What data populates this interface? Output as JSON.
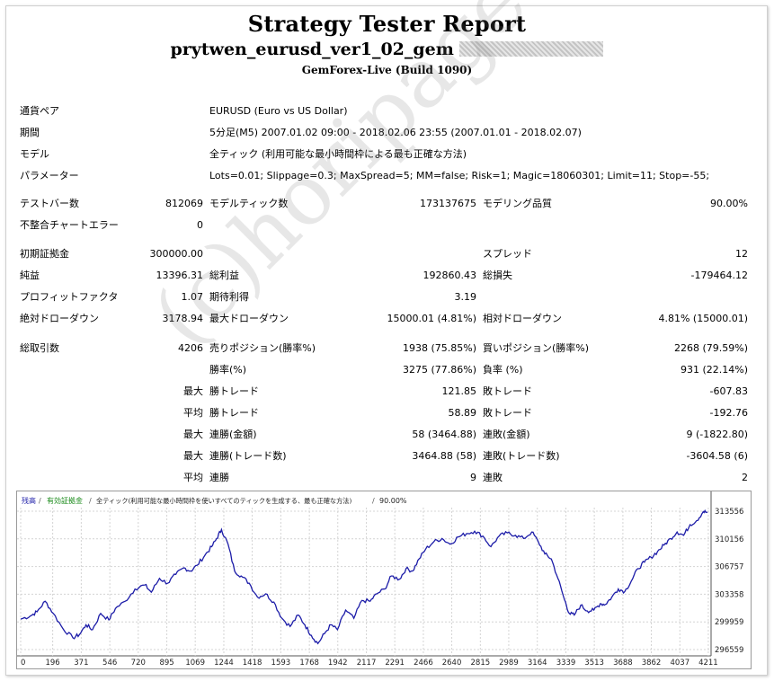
{
  "header": {
    "title": "Strategy Tester Report",
    "subtitle": "prytwen_eurusd_ver1_02_gem",
    "build": "GemForex-Live (Build 1090)"
  },
  "info": {
    "pair_label": "通貨ペア",
    "pair_value": "EURUSD (Euro vs US Dollar)",
    "period_label": "期間",
    "period_value": "5分足(M5) 2007.01.02 09:00 - 2018.02.06 23:55 (2007.01.01 - 2018.02.07)",
    "model_label": "モデル",
    "model_value": "全ティック (利用可能な最小時間枠による最も正確な方法)",
    "params_label": "パラメーター",
    "params_value": "Lots=0.01; Slippage=0.3; MaxSpread=5; MM=false; Risk=1; Magic=18060301; Limit=11; Stop=-55;"
  },
  "stats": {
    "bars_label": "テストバー数",
    "bars_value": "812069",
    "ticks_label": "モデルティック数",
    "ticks_value": "173137675",
    "quality_label": "モデリング品質",
    "quality_value": "90.00%",
    "mismatch_label": "不整合チャートエラー",
    "mismatch_value": "0",
    "deposit_label": "初期証拠金",
    "deposit_value": "300000.00",
    "spread_label": "スプレッド",
    "spread_value": "12",
    "net_label": "純益",
    "net_value": "13396.31",
    "gross_profit_label": "総利益",
    "gross_profit_value": "192860.43",
    "gross_loss_label": "総損失",
    "gross_loss_value": "-179464.12",
    "pf_label": "プロフィットファクタ",
    "pf_value": "1.07",
    "payoff_label": "期待利得",
    "payoff_value": "3.19",
    "abs_dd_label": "絶対ドローダウン",
    "abs_dd_value": "3178.94",
    "max_dd_label": "最大ドローダウン",
    "max_dd_value": "15000.01 (4.81%)",
    "rel_dd_label": "相対ドローダウン",
    "rel_dd_value": "4.81% (15000.01)",
    "total_label": "総取引数",
    "total_value": "4206",
    "short_label": "売りポジション(勝率%)",
    "short_value": "1938 (75.85%)",
    "long_label": "買いポジション(勝率%)",
    "long_value": "2268 (79.59%)",
    "win_rate_label": "勝率(%)",
    "win_rate_value": "3275 (77.86%)",
    "loss_rate_label": "負率 (%)",
    "loss_rate_value": "931 (22.14%)",
    "max1": "最大",
    "largest_win_label": "勝トレード",
    "largest_win_value": "121.85",
    "largest_loss_label": "敗トレード",
    "largest_loss_value": "-607.83",
    "avg1": "平均",
    "avg_win_label": "勝トレード",
    "avg_win_value": "58.89",
    "avg_loss_label": "敗トレード",
    "avg_loss_value": "-192.76",
    "max2": "最大",
    "cons_wins_label": "連勝(金額)",
    "cons_wins_value": "58 (3464.88)",
    "cons_losses_label": "連敗(金額)",
    "cons_losses_value": "9 (-1822.80)",
    "max3": "最大",
    "cons_profit_label": "連勝(トレード数)",
    "cons_profit_value": "3464.88 (58)",
    "cons_loss_label": "連敗(トレード数)",
    "cons_loss_value": "-3604.58 (6)",
    "avg2": "平均",
    "avg_cons_wins_label": "連勝",
    "avg_cons_wins_value": "9",
    "avg_cons_losses_label": "連敗",
    "avg_cons_losses_value": "2"
  },
  "watermark": "(c)horipage",
  "chart_data": {
    "type": "line",
    "legend": {
      "balance": "残高",
      "equity": "有効証拠金",
      "model": "全ティック(利用可能な最小時間枠を使いすべてのティックを生成する、最も正確な方法)",
      "quality": "90.00%"
    },
    "colors": {
      "line": "#1c1ca8",
      "balance_label": "#1c1ca8",
      "equity_label": "#1a8a1a"
    },
    "x_ticks": [
      0,
      196,
      371,
      546,
      720,
      895,
      1069,
      1244,
      1418,
      1593,
      1768,
      1942,
      2117,
      2291,
      2466,
      2640,
      2815,
      2989,
      3164,
      3339,
      3513,
      3688,
      3862,
      4037,
      4211
    ],
    "y_ticks": [
      "313556",
      "310156",
      "306757",
      "303358",
      "299959",
      "296559"
    ],
    "y_tick_values": [
      313556,
      310156,
      306757,
      303358,
      299959,
      296559
    ],
    "xlim": [
      0,
      4206
    ],
    "ylim": [
      296559,
      313556
    ],
    "series": [
      {
        "points": [
          [
            0,
            300300
          ],
          [
            60,
            300700
          ],
          [
            100,
            301200
          ],
          [
            150,
            302500
          ],
          [
            200,
            301000
          ],
          [
            260,
            299100
          ],
          [
            320,
            298000
          ],
          [
            360,
            298400
          ],
          [
            400,
            299600
          ],
          [
            440,
            299000
          ],
          [
            490,
            301000
          ],
          [
            540,
            300200
          ],
          [
            580,
            301600
          ],
          [
            640,
            302500
          ],
          [
            700,
            304000
          ],
          [
            760,
            304500
          ],
          [
            800,
            303600
          ],
          [
            850,
            305300
          ],
          [
            900,
            304700
          ],
          [
            950,
            305800
          ],
          [
            1000,
            306600
          ],
          [
            1040,
            306200
          ],
          [
            1080,
            306900
          ],
          [
            1130,
            308200
          ],
          [
            1170,
            309200
          ],
          [
            1200,
            310200
          ],
          [
            1230,
            311300
          ],
          [
            1270,
            309500
          ],
          [
            1310,
            306200
          ],
          [
            1350,
            305600
          ],
          [
            1400,
            304700
          ],
          [
            1450,
            303000
          ],
          [
            1500,
            303400
          ],
          [
            1550,
            302400
          ],
          [
            1600,
            300400
          ],
          [
            1650,
            299400
          ],
          [
            1700,
            300800
          ],
          [
            1740,
            299600
          ],
          [
            1780,
            298300
          ],
          [
            1820,
            297300
          ],
          [
            1860,
            298500
          ],
          [
            1900,
            299600
          ],
          [
            1940,
            299000
          ],
          [
            1990,
            301400
          ],
          [
            2040,
            300400
          ],
          [
            2090,
            302600
          ],
          [
            2140,
            302500
          ],
          [
            2180,
            303400
          ],
          [
            2230,
            304000
          ],
          [
            2270,
            305600
          ],
          [
            2320,
            305200
          ],
          [
            2360,
            306500
          ],
          [
            2400,
            306200
          ],
          [
            2440,
            307700
          ],
          [
            2480,
            308900
          ],
          [
            2530,
            309800
          ],
          [
            2580,
            310200
          ],
          [
            2630,
            309500
          ],
          [
            2680,
            310400
          ],
          [
            2730,
            310800
          ],
          [
            2780,
            311100
          ],
          [
            2830,
            310500
          ],
          [
            2880,
            309200
          ],
          [
            2930,
            310500
          ],
          [
            2980,
            310900
          ],
          [
            3030,
            310600
          ],
          [
            3080,
            310200
          ],
          [
            3130,
            311000
          ],
          [
            3170,
            309800
          ],
          [
            3210,
            308300
          ],
          [
            3250,
            307700
          ],
          [
            3290,
            305300
          ],
          [
            3330,
            302700
          ],
          [
            3360,
            301000
          ],
          [
            3390,
            300800
          ],
          [
            3430,
            302000
          ],
          [
            3470,
            301300
          ],
          [
            3510,
            301400
          ],
          [
            3550,
            302200
          ],
          [
            3580,
            302100
          ],
          [
            3620,
            303000
          ],
          [
            3660,
            304000
          ],
          [
            3700,
            303700
          ],
          [
            3740,
            305000
          ],
          [
            3780,
            306500
          ],
          [
            3820,
            307300
          ],
          [
            3860,
            307900
          ],
          [
            3900,
            308600
          ],
          [
            3940,
            309400
          ],
          [
            3980,
            310200
          ],
          [
            4020,
            311000
          ],
          [
            4060,
            310600
          ],
          [
            4100,
            311900
          ],
          [
            4140,
            312400
          ],
          [
            4180,
            313500
          ],
          [
            4206,
            313400
          ]
        ]
      }
    ]
  }
}
